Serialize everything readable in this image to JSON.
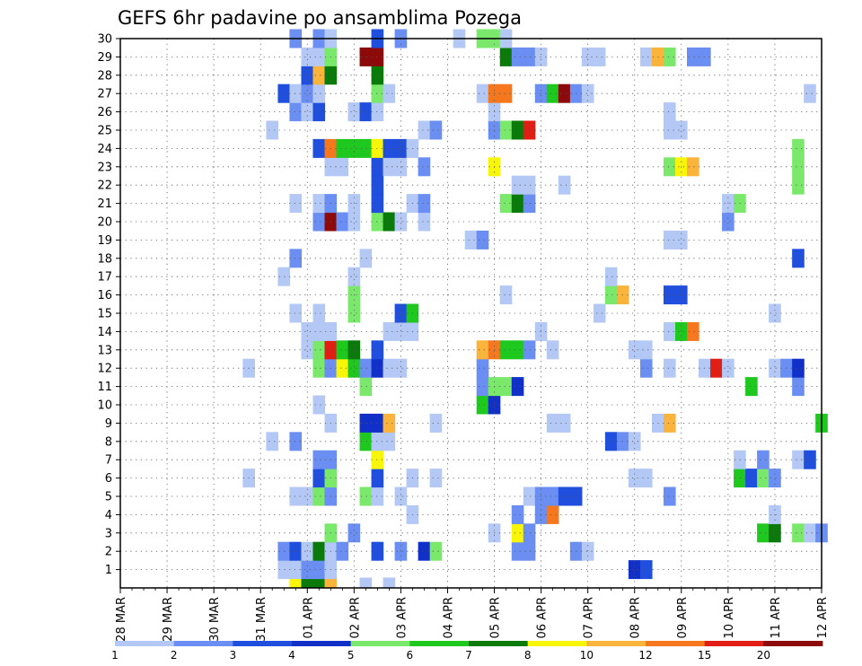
{
  "chart_data": {
    "type": "heatmap",
    "title": "GEFS 6hr padavine po ansamblima Pozega",
    "x_ticks": [
      "28 MAR",
      "29 MAR",
      "30 MAR",
      "31 MAR",
      "01 APR",
      "02 APR",
      "03 APR",
      "04 APR",
      "05 APR",
      "06 APR",
      "07 APR",
      "08 APR",
      "09 APR",
      "10 APR",
      "11 APR",
      "12 APR"
    ],
    "x_unit": "6-hour steps from 28 MAR 00Z",
    "y_ticks": [
      1,
      2,
      3,
      4,
      5,
      6,
      7,
      8,
      9,
      10,
      11,
      12,
      13,
      14,
      15,
      16,
      17,
      18,
      19,
      20,
      21,
      22,
      23,
      24,
      25,
      26,
      27,
      28,
      29,
      30
    ],
    "y_range": [
      0,
      30
    ],
    "x_range": [
      0,
      60
    ],
    "grid": true,
    "colorbar": {
      "levels": [
        "1",
        "2",
        "3",
        "4",
        "5",
        "6",
        "7",
        "8",
        "10",
        "12",
        "15",
        "20"
      ],
      "colors": [
        "#b4c8f5",
        "#6b8ef2",
        "#1f4fdc",
        "#1030c8",
        "#7ae86a",
        "#1ec81e",
        "#0a7a0a",
        "#f7f50a",
        "#fab43c",
        "#f5781e",
        "#e11e14",
        "#8c0a0a"
      ]
    },
    "members": [
      {
        "member": 0,
        "cells": [
          [
            15,
            8
          ],
          [
            16,
            7
          ],
          [
            17,
            7
          ],
          [
            18,
            9
          ],
          [
            21,
            1
          ],
          [
            23,
            1
          ]
        ]
      },
      {
        "member": 1,
        "cells": [
          [
            14,
            1
          ],
          [
            15,
            1
          ],
          [
            16,
            2
          ],
          [
            17,
            2
          ],
          [
            18,
            1
          ],
          [
            44,
            4
          ],
          [
            45,
            3
          ]
        ]
      },
      {
        "member": 2,
        "cells": [
          [
            14,
            2
          ],
          [
            15,
            3
          ],
          [
            16,
            1
          ],
          [
            17,
            7
          ],
          [
            18,
            1
          ],
          [
            19,
            2
          ],
          [
            22,
            3
          ],
          [
            24,
            2
          ],
          [
            26,
            4
          ],
          [
            27,
            5
          ],
          [
            34,
            2
          ],
          [
            35,
            2
          ],
          [
            39,
            2
          ],
          [
            40,
            1
          ]
        ]
      },
      {
        "member": 3,
        "cells": [
          [
            18,
            5
          ],
          [
            20,
            2
          ],
          [
            32,
            1
          ],
          [
            34,
            8
          ],
          [
            35,
            2
          ],
          [
            55,
            6
          ],
          [
            56,
            7
          ],
          [
            58,
            5
          ],
          [
            59,
            1
          ],
          [
            60,
            2
          ]
        ]
      },
      {
        "member": 4,
        "cells": [
          [
            25,
            1
          ],
          [
            34,
            2
          ],
          [
            36,
            2
          ],
          [
            37,
            10
          ],
          [
            56,
            1
          ]
        ]
      },
      {
        "member": 5,
        "cells": [
          [
            15,
            1
          ],
          [
            16,
            1
          ],
          [
            17,
            5
          ],
          [
            18,
            2
          ],
          [
            21,
            5
          ],
          [
            22,
            1
          ],
          [
            24,
            1
          ],
          [
            35,
            1
          ],
          [
            36,
            2
          ],
          [
            37,
            2
          ],
          [
            38,
            3
          ],
          [
            39,
            3
          ],
          [
            47,
            2
          ]
        ]
      },
      {
        "member": 6,
        "cells": [
          [
            11,
            1
          ],
          [
            17,
            3
          ],
          [
            18,
            5
          ],
          [
            22,
            3
          ],
          [
            25,
            1
          ],
          [
            27,
            1
          ],
          [
            44,
            1
          ],
          [
            45,
            1
          ],
          [
            53,
            6
          ],
          [
            54,
            3
          ],
          [
            55,
            5
          ],
          [
            56,
            2
          ]
        ]
      },
      {
        "member": 7,
        "cells": [
          [
            17,
            2
          ],
          [
            18,
            2
          ],
          [
            22,
            8
          ],
          [
            53,
            1
          ],
          [
            55,
            2
          ],
          [
            58,
            1
          ],
          [
            59,
            3
          ]
        ]
      },
      {
        "member": 8,
        "cells": [
          [
            13,
            1
          ],
          [
            15,
            2
          ],
          [
            21,
            6
          ],
          [
            22,
            1
          ],
          [
            23,
            1
          ],
          [
            42,
            3
          ],
          [
            43,
            2
          ],
          [
            44,
            1
          ]
        ]
      },
      {
        "member": 9,
        "cells": [
          [
            18,
            1
          ],
          [
            21,
            4
          ],
          [
            22,
            4
          ],
          [
            23,
            9
          ],
          [
            27,
            1
          ],
          [
            37,
            1
          ],
          [
            38,
            1
          ],
          [
            46,
            1
          ],
          [
            47,
            9
          ],
          [
            60,
            6
          ]
        ]
      },
      {
        "member": 10,
        "cells": [
          [
            17,
            1
          ],
          [
            31,
            6
          ],
          [
            32,
            4
          ]
        ]
      },
      {
        "member": 11,
        "cells": [
          [
            21,
            5
          ],
          [
            31,
            2
          ],
          [
            32,
            5
          ],
          [
            33,
            5
          ],
          [
            34,
            4
          ],
          [
            54,
            6
          ],
          [
            58,
            2
          ]
        ]
      },
      {
        "member": 12,
        "cells": [
          [
            11,
            1
          ],
          [
            17,
            5
          ],
          [
            18,
            2
          ],
          [
            19,
            8
          ],
          [
            20,
            6
          ],
          [
            21,
            2
          ],
          [
            22,
            4
          ],
          [
            23,
            1
          ],
          [
            24,
            1
          ],
          [
            31,
            2
          ],
          [
            45,
            2
          ],
          [
            47,
            1
          ],
          [
            50,
            1
          ],
          [
            51,
            11
          ],
          [
            52,
            1
          ],
          [
            56,
            1
          ],
          [
            57,
            2
          ],
          [
            58,
            4
          ]
        ]
      },
      {
        "member": 13,
        "cells": [
          [
            16,
            1
          ],
          [
            17,
            5
          ],
          [
            18,
            11
          ],
          [
            19,
            6
          ],
          [
            20,
            7
          ],
          [
            22,
            3
          ],
          [
            31,
            9
          ],
          [
            32,
            10
          ],
          [
            33,
            6
          ],
          [
            34,
            6
          ],
          [
            35,
            2
          ],
          [
            37,
            1
          ],
          [
            44,
            1
          ],
          [
            45,
            1
          ]
        ]
      },
      {
        "member": 14,
        "cells": [
          [
            16,
            1
          ],
          [
            17,
            1
          ],
          [
            18,
            1
          ],
          [
            23,
            1
          ],
          [
            24,
            1
          ],
          [
            25,
            1
          ],
          [
            36,
            1
          ],
          [
            47,
            1
          ],
          [
            48,
            6
          ],
          [
            49,
            10
          ]
        ]
      },
      {
        "member": 15,
        "cells": [
          [
            15,
            1
          ],
          [
            17,
            1
          ],
          [
            20,
            5
          ],
          [
            24,
            3
          ],
          [
            25,
            6
          ],
          [
            41,
            1
          ],
          [
            56,
            1
          ]
        ]
      },
      {
        "member": 16,
        "cells": [
          [
            20,
            5
          ],
          [
            33,
            1
          ],
          [
            42,
            5
          ],
          [
            43,
            9
          ],
          [
            47,
            3
          ],
          [
            48,
            3
          ]
        ]
      },
      {
        "member": 17,
        "cells": [
          [
            14,
            1
          ],
          [
            20,
            1
          ],
          [
            42,
            1
          ]
        ]
      },
      {
        "member": 18,
        "cells": [
          [
            15,
            2
          ],
          [
            21,
            1
          ],
          [
            58,
            3
          ]
        ]
      },
      {
        "member": 19,
        "cells": [
          [
            30,
            1
          ],
          [
            31,
            2
          ],
          [
            47,
            1
          ],
          [
            48,
            1
          ]
        ]
      },
      {
        "member": 20,
        "cells": [
          [
            17,
            2
          ],
          [
            18,
            12
          ],
          [
            19,
            2
          ],
          [
            20,
            1
          ],
          [
            22,
            5
          ],
          [
            23,
            7
          ],
          [
            24,
            1
          ],
          [
            26,
            1
          ],
          [
            52,
            2
          ]
        ]
      },
      {
        "member": 21,
        "cells": [
          [
            15,
            1
          ],
          [
            17,
            1
          ],
          [
            18,
            2
          ],
          [
            20,
            1
          ],
          [
            22,
            3
          ],
          [
            25,
            1
          ],
          [
            26,
            2
          ],
          [
            33,
            5
          ],
          [
            34,
            7
          ],
          [
            35,
            2
          ],
          [
            52,
            1
          ],
          [
            53,
            5
          ]
        ]
      },
      {
        "member": 22,
        "cells": [
          [
            22,
            3
          ],
          [
            34,
            1
          ],
          [
            35,
            1
          ],
          [
            38,
            1
          ],
          [
            58,
            5
          ]
        ]
      },
      {
        "member": 23,
        "cells": [
          [
            18,
            1
          ],
          [
            19,
            1
          ],
          [
            22,
            3
          ],
          [
            23,
            1
          ],
          [
            24,
            1
          ],
          [
            26,
            2
          ],
          [
            32,
            8
          ],
          [
            47,
            5
          ],
          [
            48,
            8
          ],
          [
            49,
            9
          ],
          [
            58,
            5
          ]
        ]
      },
      {
        "member": 24,
        "cells": [
          [
            17,
            3
          ],
          [
            18,
            10
          ],
          [
            19,
            6
          ],
          [
            20,
            6
          ],
          [
            21,
            6
          ],
          [
            22,
            8
          ],
          [
            23,
            3
          ],
          [
            24,
            3
          ],
          [
            25,
            1
          ],
          [
            58,
            5
          ]
        ]
      },
      {
        "member": 25,
        "cells": [
          [
            13,
            1
          ],
          [
            26,
            1
          ],
          [
            27,
            2
          ],
          [
            32,
            2
          ],
          [
            33,
            5
          ],
          [
            34,
            7
          ],
          [
            35,
            11
          ],
          [
            47,
            1
          ],
          [
            48,
            1
          ]
        ]
      },
      {
        "member": 26,
        "cells": [
          [
            15,
            2
          ],
          [
            16,
            1
          ],
          [
            17,
            3
          ],
          [
            20,
            1
          ],
          [
            21,
            3
          ],
          [
            22,
            1
          ],
          [
            32,
            1
          ],
          [
            47,
            1
          ]
        ]
      },
      {
        "member": 27,
        "cells": [
          [
            14,
            3
          ],
          [
            15,
            1
          ],
          [
            16,
            2
          ],
          [
            17,
            1
          ],
          [
            22,
            5
          ],
          [
            23,
            1
          ],
          [
            31,
            1
          ],
          [
            32,
            10
          ],
          [
            33,
            10
          ],
          [
            36,
            2
          ],
          [
            37,
            6
          ],
          [
            38,
            12
          ],
          [
            39,
            2
          ],
          [
            40,
            1
          ],
          [
            59,
            1
          ]
        ]
      },
      {
        "member": 28,
        "cells": [
          [
            16,
            3
          ],
          [
            17,
            9
          ],
          [
            18,
            7
          ],
          [
            22,
            7
          ]
        ]
      },
      {
        "member": 29,
        "cells": [
          [
            16,
            1
          ],
          [
            17,
            1
          ],
          [
            18,
            5
          ],
          [
            21,
            12
          ],
          [
            22,
            12
          ],
          [
            33,
            7
          ],
          [
            34,
            2
          ],
          [
            35,
            2
          ],
          [
            36,
            1
          ],
          [
            40,
            1
          ],
          [
            41,
            1
          ],
          [
            45,
            1
          ],
          [
            46,
            9
          ],
          [
            47,
            5
          ],
          [
            49,
            2
          ],
          [
            50,
            2
          ]
        ]
      },
      {
        "member": 30,
        "cells": [
          [
            15,
            2
          ],
          [
            17,
            2
          ],
          [
            18,
            1
          ],
          [
            22,
            3
          ],
          [
            24,
            2
          ],
          [
            29,
            1
          ],
          [
            31,
            5
          ],
          [
            32,
            5
          ],
          [
            33,
            1
          ]
        ]
      }
    ]
  }
}
